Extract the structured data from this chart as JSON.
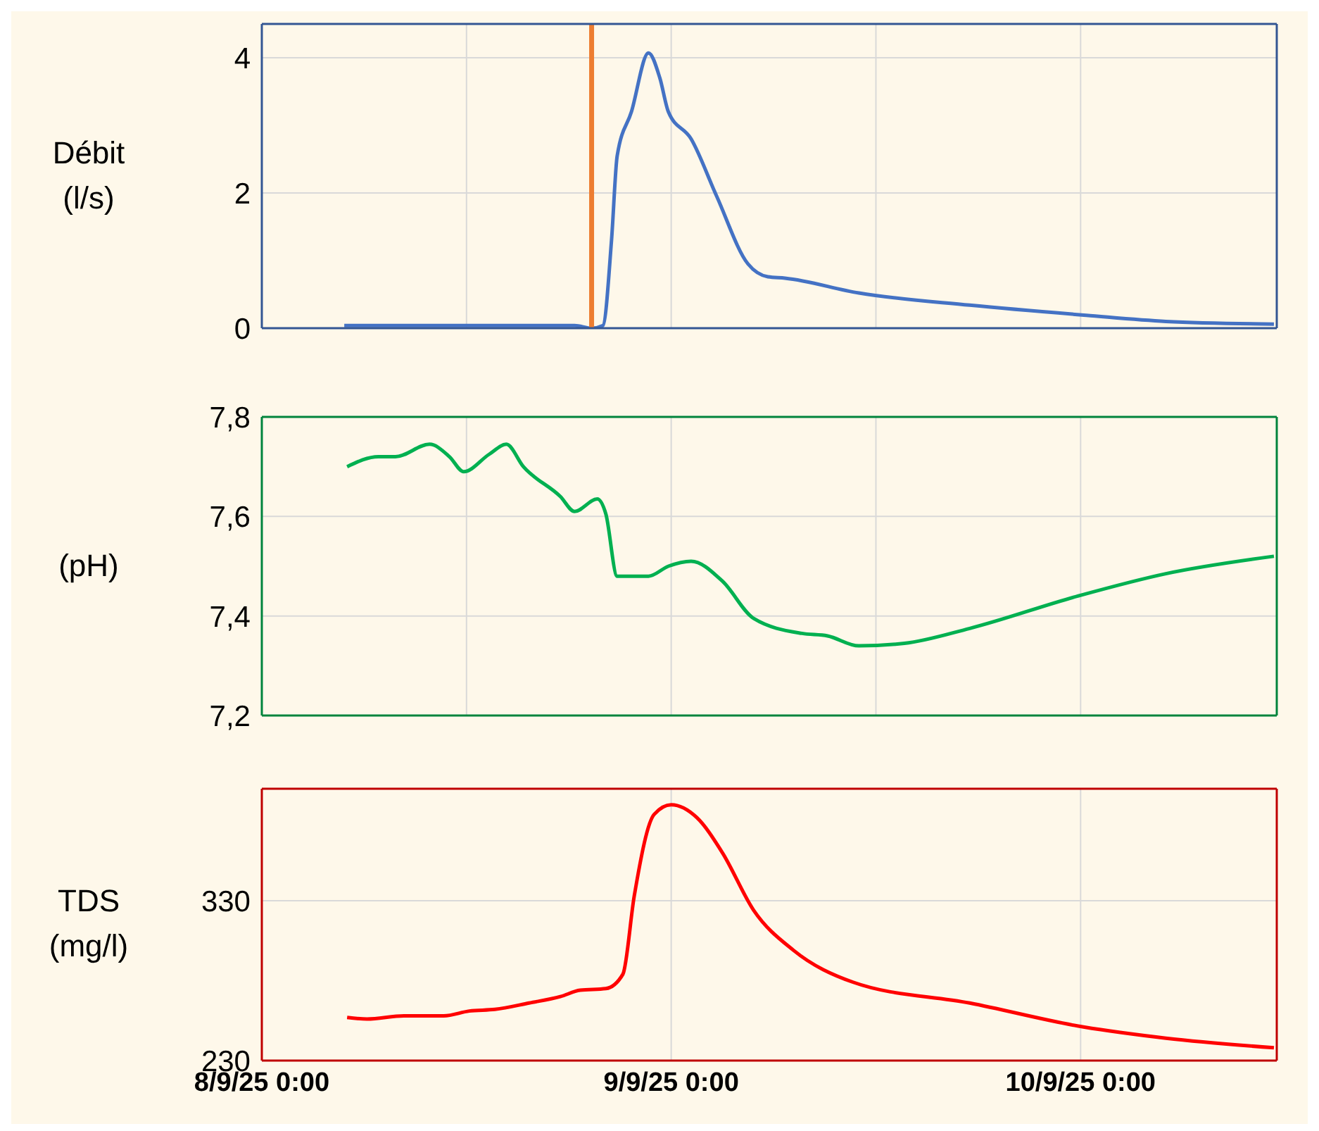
{
  "chart_data": [
    {
      "type": "line",
      "ylabel": "Débit (l/s)",
      "xlim": [
        "--09-08T00:00",
        "--09-10T11:30"
      ],
      "ylim": [
        0,
        4.5
      ],
      "yticks": [
        0,
        2,
        4
      ],
      "xticks": [
        {
          "value": "--09-08T00:00",
          "label": null
        },
        {
          "value": "--09-08T12:00",
          "label": null
        },
        {
          "value": "--09-09T00:00",
          "label": null
        },
        {
          "value": "--09-09T12:00",
          "label": null
        },
        {
          "value": "--09-10T00:00",
          "label": null
        }
      ],
      "grid": true,
      "tick_labels": "y",
      "ref_lines": [
        {
          "axis": "x",
          "value": "--09-08T19:20",
          "color": "#ed7d31"
        }
      ],
      "x": [
        "--09-08T04:50",
        "--09-08T18:20",
        "--09-08T19:20",
        "--09-08T20:00",
        "--09-08T20:30",
        "--09-08T20:50",
        "--09-08T21:40",
        "--09-08T22:40",
        "--09-08T23:20",
        "--09-08T23:50",
        "--09-09T01:10",
        "--09-09T02:40",
        "--09-09T04:30",
        "--09-09T05:40",
        "--09-09T06:40",
        "--09-09T11:00",
        "--09-09T17:30",
        "--09-10T00:20",
        "--09-10T05:00",
        "--09-10T11:20"
      ],
      "series": [
        {
          "color": "#4472c4",
          "values": [
            0.04,
            0.04,
            0,
            0.04,
            1.3,
            2.55,
            3.2,
            4.07,
            3.7,
            3.2,
            2.8,
            1.95,
            0.95,
            0.76,
            0.74,
            0.52,
            0.34,
            0.19,
            0.1,
            0.06
          ]
        }
      ]
    },
    {
      "type": "line",
      "ylabel": "(pH)",
      "xlim": [
        "--09-08T00:00",
        "--09-10T11:30"
      ],
      "ylim": [
        7.2,
        7.8
      ],
      "yticks": [
        {
          "value": 7.2,
          "label": "7,2"
        },
        {
          "value": 7.4,
          "label": "7,4"
        },
        {
          "value": 7.6,
          "label": "7,6"
        },
        {
          "value": 7.8,
          "label": "7,8"
        }
      ],
      "xticks": [
        {
          "value": "--09-08T00:00",
          "label": null
        },
        {
          "value": "--09-08T12:00",
          "label": null
        },
        {
          "value": "--09-09T00:00",
          "label": null
        },
        {
          "value": "--09-09T12:00",
          "label": null
        },
        {
          "value": "--09-10T00:00",
          "label": null
        }
      ],
      "grid": true,
      "tick_labels": "y",
      "x": [
        "--09-08T05:00",
        "--09-08T06:50",
        "--09-08T07:50",
        "--09-08T09:50",
        "--09-08T11:00",
        "--09-08T11:50",
        "--09-08T13:20",
        "--09-08T14:20",
        "--09-08T15:20",
        "--09-08T17:30",
        "--09-08T18:20",
        "--09-08T19:40",
        "--09-08T20:10",
        "--09-08T20:50",
        "--09-08T21:50",
        "--09-08T22:40",
        "--09-08T23:50",
        "--09-09T01:10",
        "--09-09T03:00",
        "--09-09T04:50",
        "--09-09T07:40",
        "--09-09T09:10",
        "--09-09T11:00",
        "--09-09T13:40",
        "--09-09T17:30",
        "--09-09T23:50",
        "--09-10T05:00",
        "--09-10T11:20"
      ],
      "series": [
        {
          "color": "#00b050",
          "values": [
            7.7,
            7.72,
            7.72,
            7.745,
            7.72,
            7.69,
            7.725,
            7.745,
            7.7,
            7.64,
            7.61,
            7.635,
            7.605,
            7.48,
            7.48,
            7.48,
            7.5,
            7.51,
            7.47,
            7.395,
            7.365,
            7.36,
            7.34,
            7.345,
            7.375,
            7.44,
            7.485,
            7.52
          ]
        }
      ]
    },
    {
      "type": "line",
      "ylabel": "TDS (mg/l)",
      "xlim": [
        "--09-08T00:00",
        "--09-10T11:30"
      ],
      "ylim": [
        230,
        400
      ],
      "yticks": [
        230,
        330
      ],
      "xticks": [
        {
          "value": "--09-08T00:00",
          "label": "8/9/25 0:00"
        },
        {
          "value": "--09-09T00:00",
          "label": "9/9/25 0:00"
        },
        {
          "value": "--09-10T00:00",
          "label": "10/9/25 0:00"
        }
      ],
      "grid": true,
      "x": [
        "--09-08T05:00",
        "--09-08T06:10",
        "--09-08T08:20",
        "--09-08T10:40",
        "--09-08T12:10",
        "--09-08T13:40",
        "--09-08T15:40",
        "--09-08T17:30",
        "--09-08T18:40",
        "--09-08T20:10",
        "--09-08T21:10",
        "--09-08T21:50",
        "--09-08T23:00",
        "--09-09T00:00",
        "--09-09T01:30",
        "--09-09T03:00",
        "--09-09T04:50",
        "--09-09T07:10",
        "--09-09T10:40",
        "--09-09T17:30",
        "--09-10T00:10",
        "--09-10T05:00",
        "--09-10T11:20"
      ],
      "series": [
        {
          "color": "#ff0000",
          "values": [
            257,
            256,
            258,
            258,
            261,
            262,
            266,
            270,
            274,
            275,
            284,
            333,
            384,
            390,
            382,
            360,
            324,
            299,
            279,
            266,
            251,
            244,
            238
          ]
        }
      ]
    }
  ]
}
